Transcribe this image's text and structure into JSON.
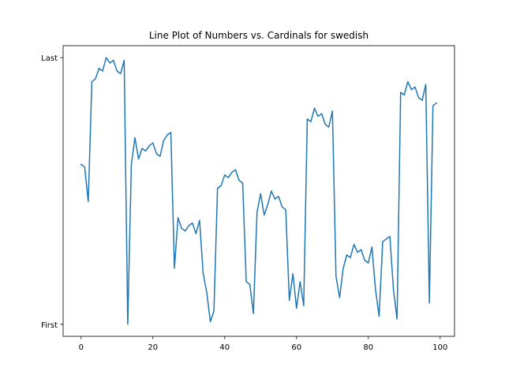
{
  "chart_data": {
    "type": "line",
    "title": "Line Plot of Numbers vs. Cardinals for swedish",
    "xlabel": "",
    "ylabel": "",
    "xlim": [
      -5,
      104
    ],
    "ylim": [
      -0.045,
      1.045
    ],
    "x_ticks": [
      0,
      20,
      40,
      60,
      80,
      100
    ],
    "x_tick_labels": [
      "0",
      "20",
      "40",
      "60",
      "80",
      "100"
    ],
    "y_ticks": [
      0,
      1
    ],
    "y_tick_labels": [
      "First",
      "Last"
    ],
    "grid": false,
    "legend": "none",
    "series": [
      {
        "color": "#1f77b4",
        "x": [
          0,
          1,
          2,
          3,
          4,
          5,
          6,
          7,
          8,
          9,
          10,
          11,
          12,
          13,
          14,
          15,
          16,
          17,
          18,
          19,
          20,
          21,
          22,
          23,
          24,
          25,
          26,
          27,
          28,
          29,
          30,
          31,
          32,
          33,
          34,
          35,
          36,
          37,
          38,
          39,
          40,
          41,
          42,
          43,
          44,
          45,
          46,
          47,
          48,
          49,
          50,
          51,
          52,
          53,
          54,
          55,
          56,
          57,
          58,
          59,
          60,
          61,
          62,
          63,
          64,
          65,
          66,
          67,
          68,
          69,
          70,
          71,
          72,
          73,
          74,
          75,
          76,
          77,
          78,
          79,
          80,
          81,
          82,
          83,
          84,
          85,
          86,
          87,
          88,
          89,
          90,
          91,
          92,
          93,
          94,
          95,
          96,
          97,
          98,
          99
        ],
        "y": [
          0.6,
          0.59,
          0.46,
          0.91,
          0.92,
          0.96,
          0.95,
          1.0,
          0.98,
          0.99,
          0.95,
          0.94,
          0.99,
          0.0,
          0.6,
          0.7,
          0.62,
          0.66,
          0.65,
          0.67,
          0.68,
          0.64,
          0.63,
          0.69,
          0.71,
          0.72,
          0.21,
          0.4,
          0.36,
          0.35,
          0.37,
          0.38,
          0.34,
          0.39,
          0.19,
          0.12,
          0.01,
          0.05,
          0.51,
          0.52,
          0.56,
          0.55,
          0.57,
          0.58,
          0.54,
          0.53,
          0.16,
          0.15,
          0.04,
          0.42,
          0.49,
          0.41,
          0.45,
          0.5,
          0.47,
          0.48,
          0.44,
          0.43,
          0.09,
          0.19,
          0.06,
          0.16,
          0.07,
          0.77,
          0.76,
          0.81,
          0.78,
          0.79,
          0.75,
          0.74,
          0.8,
          0.18,
          0.1,
          0.21,
          0.26,
          0.25,
          0.3,
          0.27,
          0.28,
          0.24,
          0.23,
          0.29,
          0.13,
          0.03,
          0.31,
          0.32,
          0.33,
          0.13,
          0.02,
          0.87,
          0.86,
          0.91,
          0.88,
          0.89,
          0.85,
          0.84,
          0.9,
          0.08,
          0.82,
          0.83
        ]
      }
    ]
  }
}
